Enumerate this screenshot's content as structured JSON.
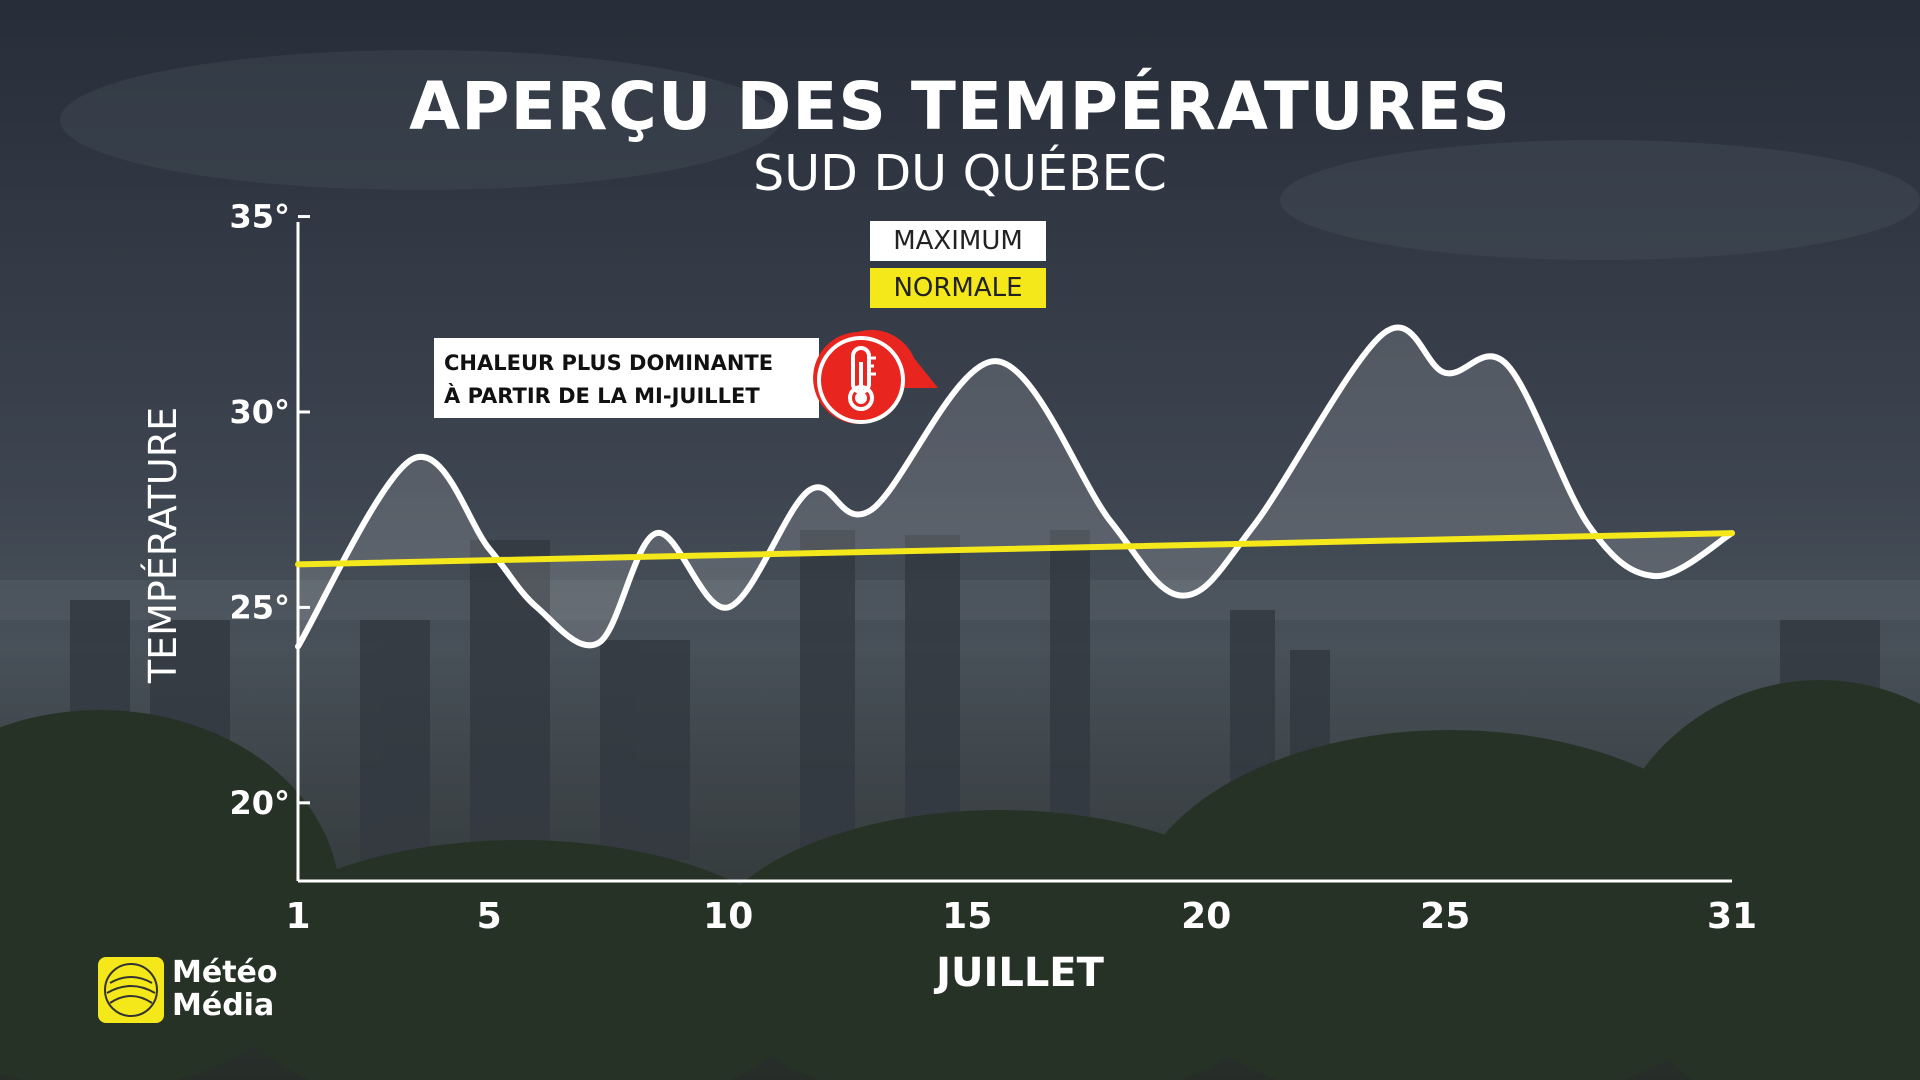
{
  "header": {
    "title": "APERÇU DES TEMPÉRATURES",
    "subtitle": "SUD DU QUÉBEC"
  },
  "legend": {
    "maximum": "MAXIMUM",
    "normale": "NORMALE"
  },
  "annotation": {
    "line1": "CHALEUR PLUS DOMINANTE",
    "line2": "À PARTIR DE LA MI-JUILLET",
    "icon": "thermometer-icon"
  },
  "logo": {
    "line1": "Météo",
    "line2": "Média"
  },
  "colors": {
    "maximum": "#ffffff",
    "normale": "#f4e81a",
    "annotation_icon": "#e8251f",
    "logo": "#f4e81a"
  },
  "chart_data": {
    "type": "line",
    "xlabel": "JUILLET",
    "ylabel": "TEMPÉRATURE",
    "xlim": [
      1,
      31
    ],
    "ylim": [
      18,
      35.5
    ],
    "x_ticks": [
      1,
      5,
      10,
      15,
      20,
      25,
      31
    ],
    "x_tick_labels": [
      "1",
      "5",
      "10",
      "15",
      "20",
      "25",
      "31"
    ],
    "y_ticks": [
      20,
      25,
      30,
      35
    ],
    "y_tick_labels": [
      "20°",
      "25°",
      "30°",
      "35°"
    ],
    "grid": false,
    "series": [
      {
        "name": "MAXIMUM",
        "color": "#ffffff",
        "x": [
          1,
          3.4,
          5,
          6,
          7.3,
          8.5,
          10,
          11.7,
          13,
          15.6,
          18,
          19.5,
          21,
          23.7,
          25,
          26.3,
          28,
          29.4,
          31
        ],
        "y": [
          24.0,
          28.8,
          26.5,
          25.0,
          24.1,
          26.9,
          25.0,
          28.0,
          27.5,
          31.3,
          27.2,
          25.3,
          27.1,
          32.0,
          31.0,
          31.2,
          27.1,
          25.8,
          26.9
        ]
      },
      {
        "name": "NORMALE",
        "color": "#f4e81a",
        "x": [
          1,
          31
        ],
        "y": [
          26.1,
          26.9
        ]
      }
    ]
  }
}
